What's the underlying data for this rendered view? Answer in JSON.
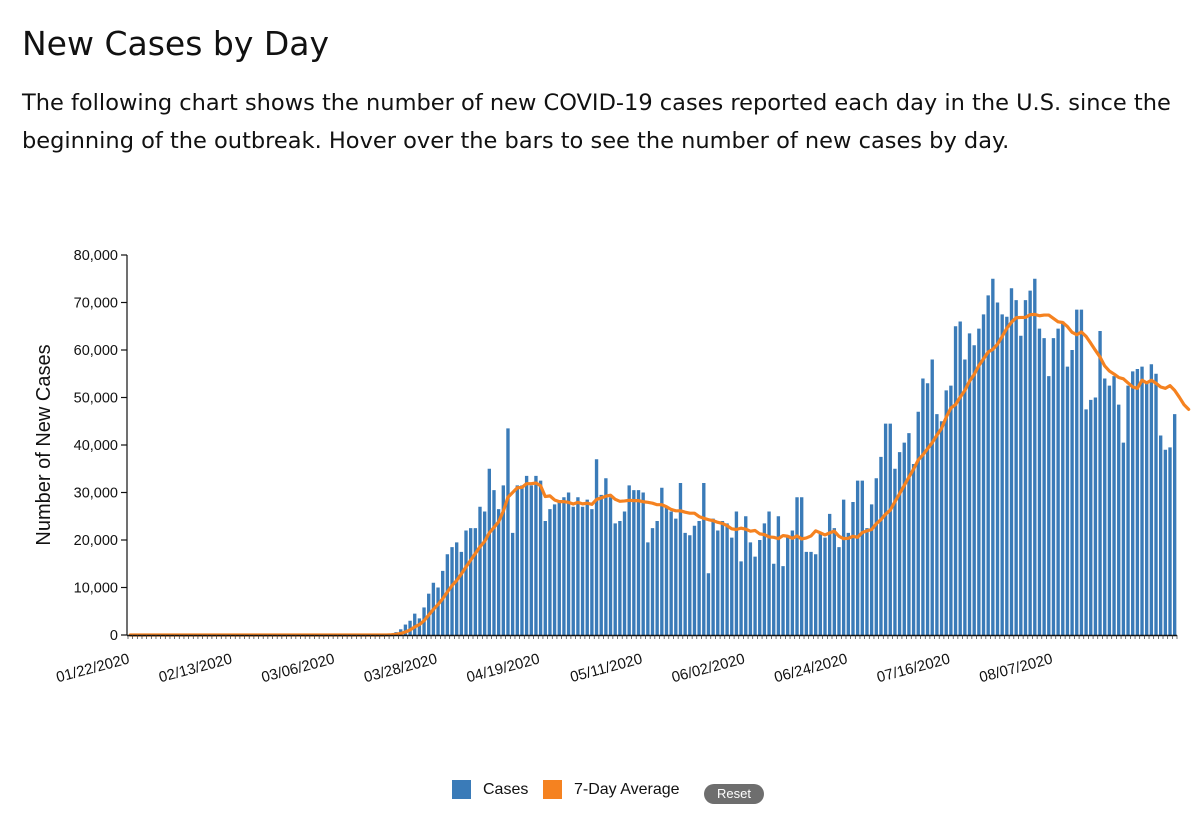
{
  "page": {
    "title": "New Cases by Day",
    "description": "The following chart shows the number of new COVID-19 cases reported each day in the U.S. since the beginning of the outbreak. Hover over the bars to see the number of new cases by day."
  },
  "chart_data": {
    "type": "bar",
    "title": "New Cases by Day",
    "xlabel": "",
    "ylabel": "Number of New Cases",
    "ylim": [
      0,
      80000
    ],
    "y_ticks": [
      0,
      10000,
      20000,
      30000,
      40000,
      50000,
      60000,
      70000,
      80000
    ],
    "y_tick_labels": [
      "0",
      "10,000",
      "20,000",
      "30,000",
      "40,000",
      "50,000",
      "60,000",
      "70,000",
      "80,000"
    ],
    "x_tick_labels": [
      "01/22/2020",
      "02/13/2020",
      "03/06/2020",
      "03/28/2020",
      "04/19/2020",
      "05/11/2020",
      "06/02/2020",
      "06/24/2020",
      "07/16/2020",
      "08/07/2020"
    ],
    "x_tick_every": 22,
    "legend_position": "bottom-center",
    "series": [
      {
        "name": "Cases",
        "color": "#3a7bb8",
        "type": "bar",
        "values": [
          0,
          0,
          0,
          0,
          0,
          0,
          0,
          0,
          0,
          0,
          0,
          0,
          0,
          0,
          0,
          0,
          0,
          0,
          0,
          0,
          0,
          0,
          0,
          0,
          0,
          0,
          0,
          0,
          0,
          0,
          0,
          0,
          0,
          0,
          0,
          0,
          0,
          0,
          0,
          0,
          0,
          0,
          0,
          0,
          0,
          0,
          0,
          0,
          0,
          0,
          0,
          0,
          0,
          0,
          0,
          100,
          300,
          600,
          1200,
          2200,
          3000,
          4500,
          3500,
          5800,
          8700,
          11000,
          10000,
          13500,
          17000,
          18500,
          19500,
          17500,
          22000,
          22500,
          22500,
          27000,
          26000,
          35000,
          30500,
          26500,
          31500,
          43500,
          21500,
          31500,
          31500,
          33500,
          31500,
          33500,
          32500,
          24000,
          26500,
          27500,
          28000,
          29000,
          30000,
          27000,
          29000,
          27000,
          28500,
          26500,
          37000,
          29500,
          33000,
          29000,
          23500,
          24000,
          26000,
          31500,
          30500,
          30500,
          30000,
          19500,
          22500,
          24000,
          31000,
          27000,
          26000,
          24500,
          32000,
          21500,
          21000,
          23000,
          24000,
          32000,
          13000,
          24500,
          22000,
          24000,
          23500,
          20500,
          26000,
          15500,
          25000,
          19500,
          16500,
          20000,
          23500,
          26000,
          15000,
          25000,
          14500,
          21000,
          22000,
          29000,
          29000,
          17500,
          17500,
          17000,
          21500,
          20500,
          25500,
          22500,
          18500,
          28500,
          21500,
          28000,
          32500,
          32500,
          22500,
          27500,
          33000,
          37500,
          44500,
          44500,
          35000,
          38500,
          40500,
          42500,
          36000,
          47000,
          54000,
          53000,
          58000,
          46500,
          45000,
          51500,
          52500,
          65000,
          66000,
          58000,
          63500,
          61000,
          64500,
          67500,
          71500,
          75000,
          70000,
          67500,
          67000,
          73000,
          70500,
          63000,
          70500,
          72500,
          75000,
          64500,
          62500,
          54500,
          62500,
          64500,
          66000,
          56500,
          60000,
          68500,
          68500,
          47500,
          49500,
          50000,
          64000,
          54000,
          52500,
          54500,
          48500,
          40500,
          52500,
          55500,
          56000,
          56500,
          53000,
          57000,
          55000,
          42000,
          39000,
          39500,
          46500
        ]
      },
      {
        "name": "7-Day Average",
        "color": "#f58220",
        "type": "line",
        "values": [
          0,
          0,
          0,
          0,
          0,
          0,
          0,
          0,
          0,
          0,
          0,
          0,
          0,
          0,
          0,
          0,
          0,
          0,
          0,
          0,
          0,
          0,
          0,
          0,
          0,
          0,
          0,
          0,
          0,
          0,
          0,
          0,
          0,
          0,
          0,
          0,
          0,
          0,
          0,
          0,
          0,
          0,
          0,
          0,
          0,
          0,
          0,
          0,
          0,
          0,
          0,
          0,
          0,
          0,
          0,
          14,
          57,
          143,
          314,
          629,
          1057,
          1700,
          2186,
          3013,
          4213,
          5386,
          6429,
          7629,
          9071,
          10400,
          11471,
          12857,
          14329,
          15757,
          17143,
          18571,
          19714,
          21500,
          22643,
          23843,
          26071,
          29000,
          30000,
          31000,
          31071,
          31857,
          31857,
          32000,
          31429,
          29143,
          29286,
          28429,
          28071,
          28071,
          27929,
          27571,
          27929,
          27607,
          27750,
          27500,
          28536,
          28857,
          29214,
          29429,
          28571,
          28143,
          28229,
          28357,
          28286,
          28286,
          28057,
          27929,
          27750,
          27429,
          27429,
          27000,
          26429,
          26143,
          26143,
          25857,
          25643,
          25643,
          24929,
          24571,
          24286,
          24071,
          23714,
          23500,
          23000,
          22357,
          22214,
          22500,
          22286,
          21857,
          22000,
          21286,
          21143,
          20643,
          20571,
          20286,
          20929,
          20786,
          20357,
          20857,
          20214,
          20429,
          20857,
          21929,
          21500,
          21071,
          21500,
          21857,
          20786,
          20286,
          20357,
          20786,
          20571,
          21571,
          21929,
          22214,
          23429,
          24286,
          25429,
          26286,
          28071,
          29750,
          31500,
          33214,
          34929,
          36857,
          37929,
          39214,
          40500,
          42071,
          43500,
          45857,
          47786,
          48500,
          50071,
          51500,
          53429,
          54857,
          56714,
          58143,
          59571,
          60143,
          61214,
          62857,
          64571,
          65857,
          66786,
          66857,
          66857,
          67429,
          67500,
          67214,
          67357,
          67357,
          66643,
          65929,
          65786,
          64929,
          63714,
          63214,
          63786,
          62857,
          61429,
          59929,
          58500,
          56643,
          55571,
          54929,
          54214,
          53929,
          53071,
          52214,
          51929,
          53643,
          53071,
          53643,
          53000,
          52214,
          51929,
          52500,
          51500,
          50071,
          48500,
          47500
        ]
      }
    ]
  },
  "legend": {
    "items": [
      {
        "label": "Cases",
        "color": "#3a7bb8"
      },
      {
        "label": "7-Day Average",
        "color": "#f58220"
      }
    ],
    "reset_label": "Reset"
  }
}
